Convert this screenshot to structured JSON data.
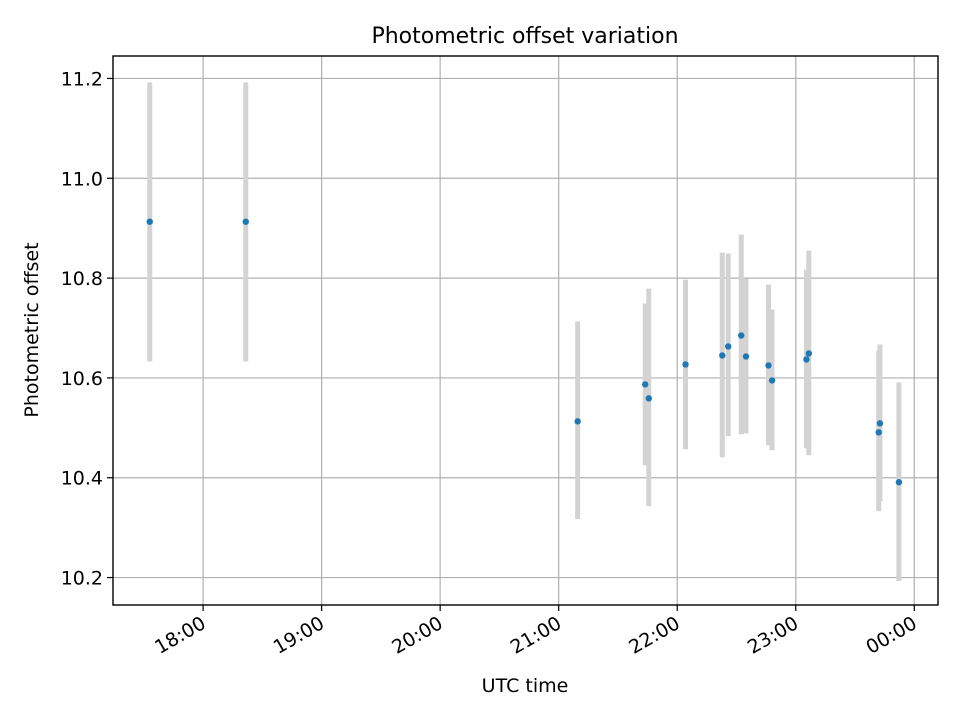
{
  "chart_data": {
    "type": "scatter",
    "title": "Photometric offset variation",
    "xlabel": "UTC time",
    "ylabel": "Photometric offset",
    "x_axis": {
      "unit": "time (h)",
      "ticks": [
        18,
        19,
        20,
        21,
        22,
        23,
        24
      ],
      "tick_labels": [
        "18:00",
        "19:00",
        "20:00",
        "21:00",
        "22:00",
        "23:00",
        "00:00"
      ],
      "range": [
        17.24,
        24.2
      ]
    },
    "y_axis": {
      "ticks": [
        10.2,
        10.4,
        10.6,
        10.8,
        11.0,
        11.2
      ],
      "tick_labels": [
        "10.2",
        "10.4",
        "10.6",
        "10.8",
        "11.0",
        "11.2"
      ],
      "range": [
        10.145,
        11.245
      ]
    },
    "grid": true,
    "colors": {
      "points": "#1f77b4",
      "errorbars": "#d3d3d3",
      "grid": "#b0b0b0"
    },
    "points": [
      {
        "x": 17.55,
        "y": 10.913,
        "y_lo": 10.633,
        "y_hi": 11.192
      },
      {
        "x": 18.36,
        "y": 10.913,
        "y_lo": 10.633,
        "y_hi": 11.192
      },
      {
        "x": 21.16,
        "y": 10.513,
        "y_lo": 10.317,
        "y_hi": 10.713
      },
      {
        "x": 21.73,
        "y": 10.587,
        "y_lo": 10.425,
        "y_hi": 10.749
      },
      {
        "x": 21.76,
        "y": 10.559,
        "y_lo": 10.343,
        "y_hi": 10.779
      },
      {
        "x": 22.07,
        "y": 10.627,
        "y_lo": 10.457,
        "y_hi": 10.797
      },
      {
        "x": 22.38,
        "y": 10.645,
        "y_lo": 10.441,
        "y_hi": 10.851
      },
      {
        "x": 22.43,
        "y": 10.663,
        "y_lo": 10.483,
        "y_hi": 10.849
      },
      {
        "x": 22.54,
        "y": 10.685,
        "y_lo": 10.487,
        "y_hi": 10.887
      },
      {
        "x": 22.58,
        "y": 10.643,
        "y_lo": 10.489,
        "y_hi": 10.799
      },
      {
        "x": 22.77,
        "y": 10.625,
        "y_lo": 10.465,
        "y_hi": 10.787
      },
      {
        "x": 22.8,
        "y": 10.595,
        "y_lo": 10.455,
        "y_hi": 10.737
      },
      {
        "x": 23.09,
        "y": 10.637,
        "y_lo": 10.459,
        "y_hi": 10.817
      },
      {
        "x": 23.11,
        "y": 10.649,
        "y_lo": 10.445,
        "y_hi": 10.855
      },
      {
        "x": 23.7,
        "y": 10.491,
        "y_lo": 10.333,
        "y_hi": 10.655
      },
      {
        "x": 23.71,
        "y": 10.509,
        "y_lo": 10.353,
        "y_hi": 10.667
      },
      {
        "x": 23.87,
        "y": 10.391,
        "y_lo": 10.193,
        "y_hi": 10.591
      }
    ]
  }
}
